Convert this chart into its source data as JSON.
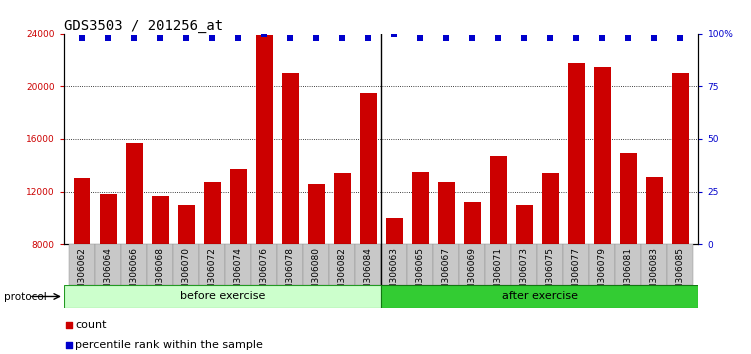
{
  "title": "GDS3503 / 201256_at",
  "categories": [
    "GSM306062",
    "GSM306064",
    "GSM306066",
    "GSM306068",
    "GSM306070",
    "GSM306072",
    "GSM306074",
    "GSM306076",
    "GSM306078",
    "GSM306080",
    "GSM306082",
    "GSM306084",
    "GSM306063",
    "GSM306065",
    "GSM306067",
    "GSM306069",
    "GSM306071",
    "GSM306073",
    "GSM306075",
    "GSM306077",
    "GSM306079",
    "GSM306081",
    "GSM306083",
    "GSM306085"
  ],
  "values": [
    13000,
    11800,
    15700,
    11700,
    11000,
    12700,
    13700,
    23900,
    21000,
    12600,
    13400,
    19500,
    10000,
    13500,
    12700,
    11200,
    14700,
    11000,
    13400,
    21800,
    21500,
    14900,
    13100,
    21000
  ],
  "percentile_values": [
    98,
    98,
    98,
    98,
    98,
    98,
    98,
    100,
    98,
    98,
    98,
    98,
    100,
    98,
    98,
    98,
    98,
    98,
    98,
    98,
    98,
    98,
    98,
    98
  ],
  "before_count": 12,
  "after_count": 12,
  "bar_color": "#CC0000",
  "dot_color": "#0000CC",
  "before_label": "before exercise",
  "after_label": "after exercise",
  "before_bg": "#CCFFCC",
  "after_bg": "#33CC33",
  "protocol_label": "protocol",
  "ylim": [
    8000,
    24000
  ],
  "yticks_left": [
    8000,
    12000,
    16000,
    20000,
    24000
  ],
  "yticks_right_vals": [
    0,
    25,
    50,
    75,
    100
  ],
  "yticks_right_labels": [
    "0",
    "25",
    "50",
    "75",
    "100%"
  ],
  "legend_count_label": "count",
  "legend_pct_label": "percentile rank within the sample",
  "title_fontsize": 10,
  "tick_fontsize": 6.5,
  "bar_width": 0.65
}
